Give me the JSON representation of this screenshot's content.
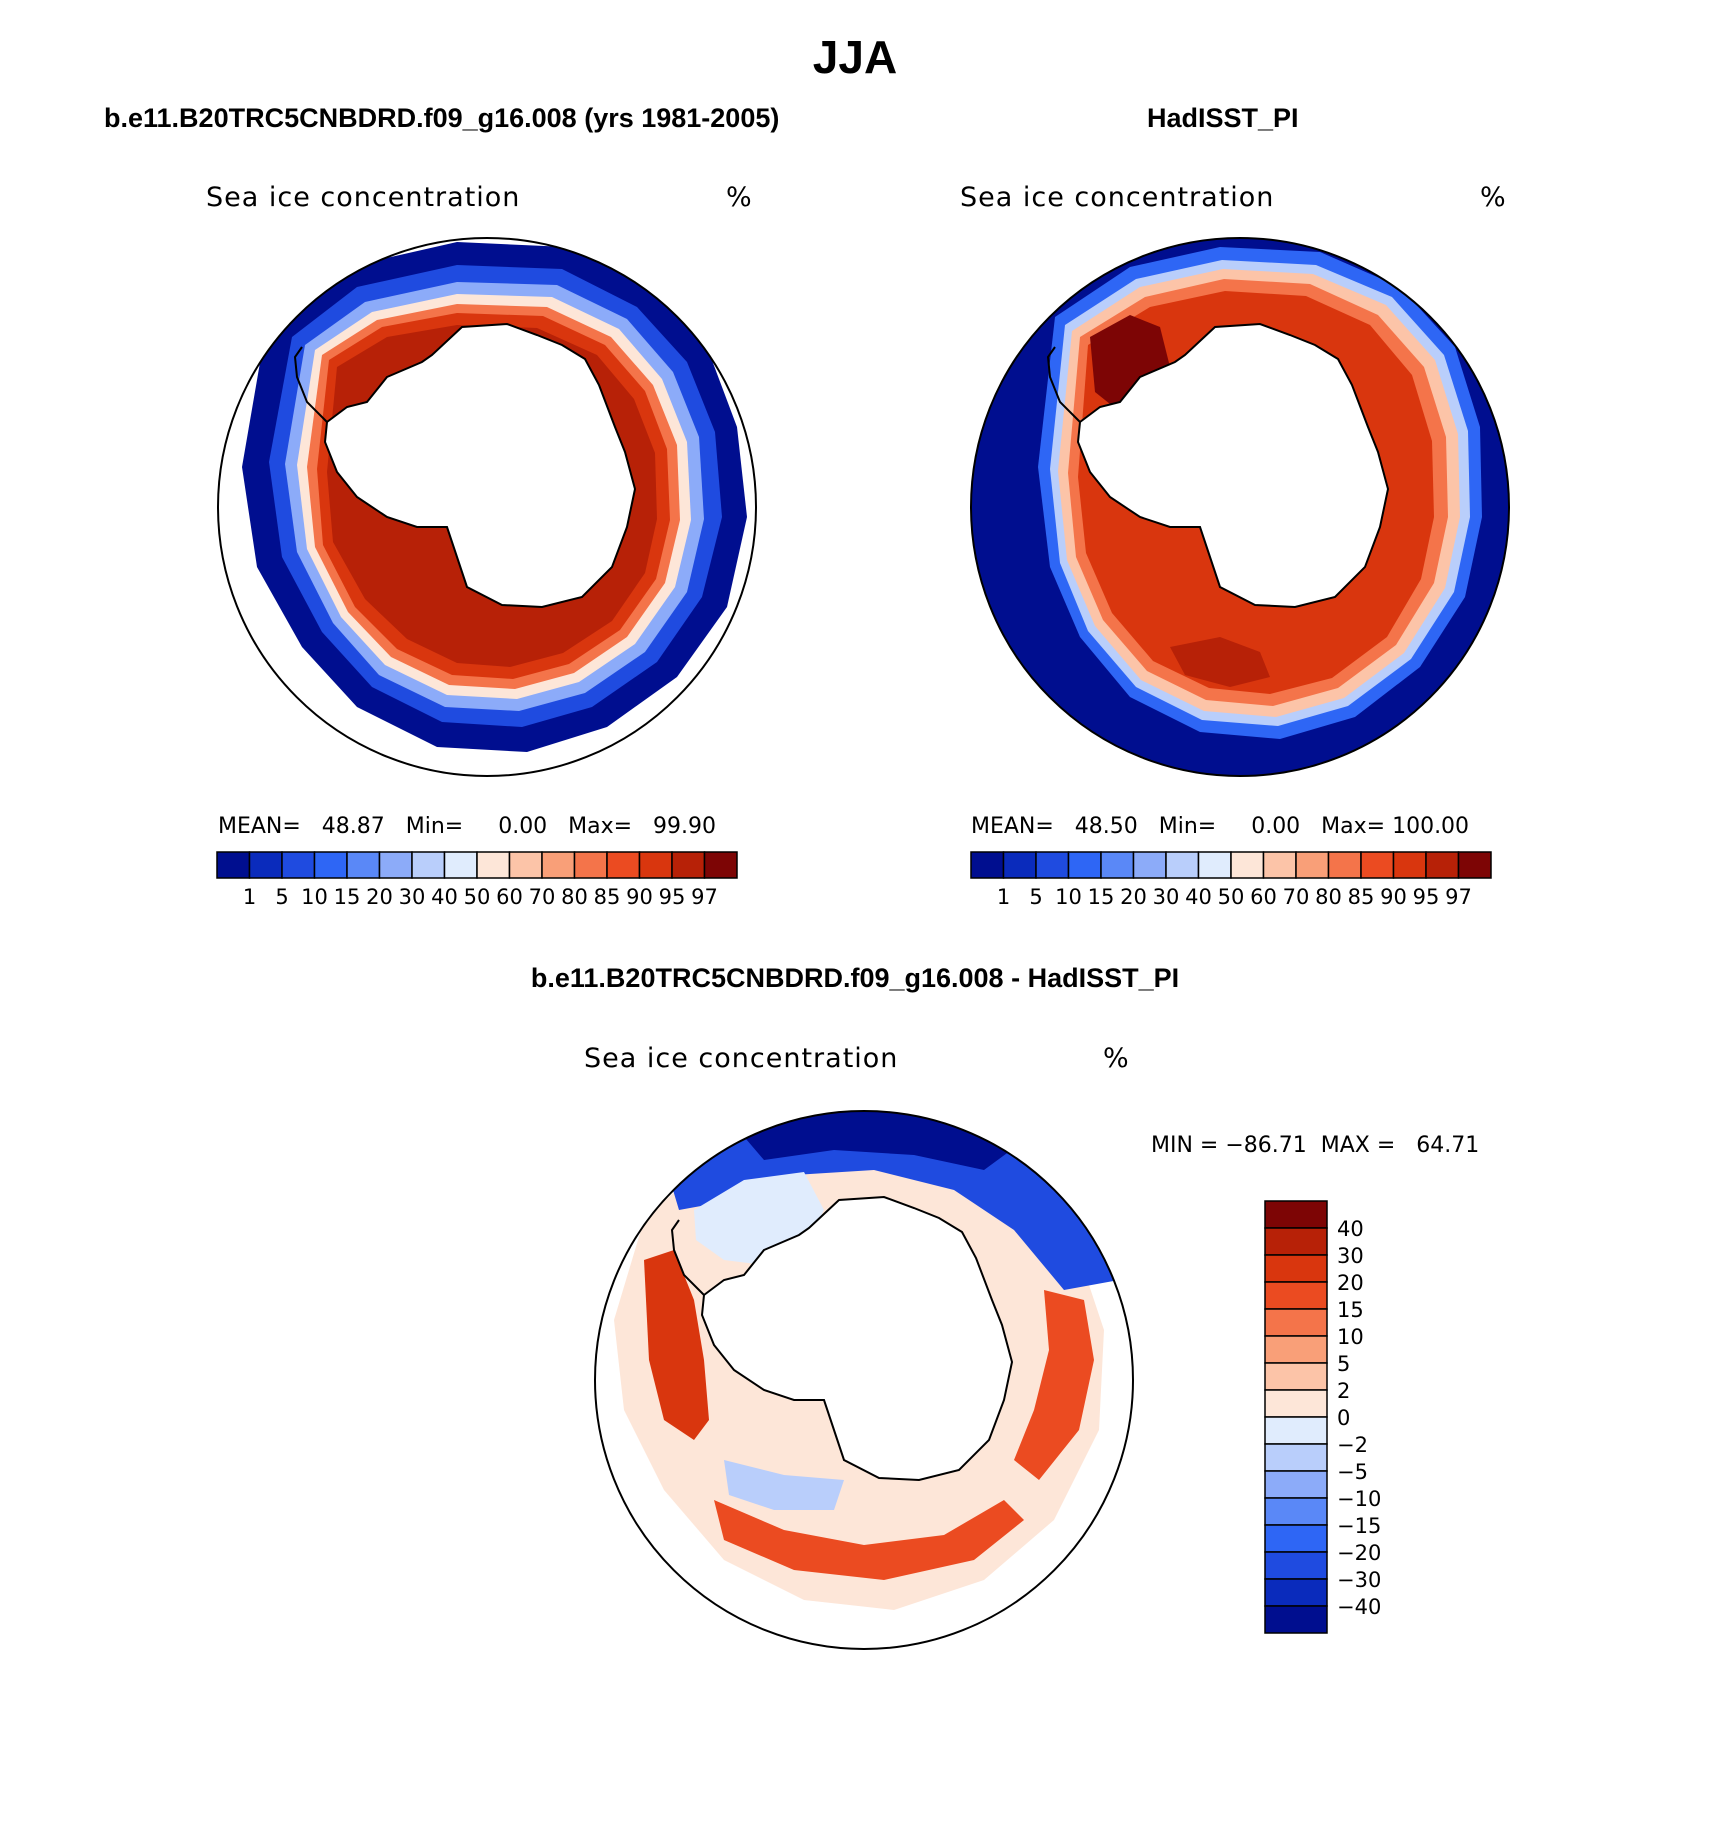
{
  "figure": {
    "title": "JJA",
    "panel_left_title": "b.e11.B20TRC5CNBDRD.f09_g16.008 (yrs 1981-2005)",
    "panel_right_title": "HadISST_PI",
    "panel_diff_title": "b.e11.B20TRC5CNBDRD.f09_g16.008 - HadISST_PI"
  },
  "panels": {
    "left": {
      "field_name": "Sea ice concentration",
      "units": "%",
      "stats_text": "MEAN=   48.87   Min=     0.00   Max=   99.90"
    },
    "right": {
      "field_name": "Sea ice concentration",
      "units": "%",
      "stats_text": "MEAN=   48.50   Min=     0.00   Max= 100.00"
    },
    "diff": {
      "field_name": "Sea ice concentration",
      "units": "%",
      "stats_text": "MIN = −86.71  MAX =   64.71"
    }
  },
  "chart_data": [
    {
      "type": "heatmap",
      "title": "b.e11.B20TRC5CNBDRD.f09_g16.008 (yrs 1981-2005)",
      "projection": "south-polar-stereographic",
      "variable": "Sea ice concentration",
      "units": "%",
      "mean": 48.87,
      "min": 0.0,
      "max": 99.9,
      "colorbar_levels": [
        "1",
        "5",
        "10",
        "15",
        "20",
        "30",
        "40",
        "50",
        "60",
        "70",
        "80",
        "85",
        "90",
        "95",
        "97"
      ],
      "colorbar_colors": [
        "#000e8f",
        "#0a2bbc",
        "#1f4be0",
        "#2e66f5",
        "#5a88f7",
        "#8cabf9",
        "#b9cefb",
        "#e0ecfd",
        "#fde6d8",
        "#fcc4a8",
        "#f99f78",
        "#f4744a",
        "#eb4b21",
        "#d9360e",
        "#b72107",
        "#7d0505"
      ]
    },
    {
      "type": "heatmap",
      "title": "HadISST_PI",
      "projection": "south-polar-stereographic",
      "variable": "Sea ice concentration",
      "units": "%",
      "mean": 48.5,
      "min": 0.0,
      "max": 100.0,
      "colorbar_levels": [
        "1",
        "5",
        "10",
        "15",
        "20",
        "30",
        "40",
        "50",
        "60",
        "70",
        "80",
        "85",
        "90",
        "95",
        "97"
      ],
      "colorbar_colors": [
        "#000e8f",
        "#0a2bbc",
        "#1f4be0",
        "#2e66f5",
        "#5a88f7",
        "#8cabf9",
        "#b9cefb",
        "#e0ecfd",
        "#fde6d8",
        "#fcc4a8",
        "#f99f78",
        "#f4744a",
        "#eb4b21",
        "#d9360e",
        "#b72107",
        "#7d0505"
      ]
    },
    {
      "type": "heatmap",
      "title": "b.e11.B20TRC5CNBDRD.f09_g16.008 - HadISST_PI",
      "projection": "south-polar-stereographic",
      "variable": "Sea ice concentration",
      "units": "%",
      "min": -86.71,
      "max": 64.71,
      "colorbar_levels": [
        "40",
        "30",
        "20",
        "15",
        "10",
        "5",
        "2",
        "0",
        "−2",
        "−5",
        "−10",
        "−15",
        "−20",
        "−30",
        "−40"
      ],
      "colorbar_colors": [
        "#7d0505",
        "#b72107",
        "#d9360e",
        "#eb4b21",
        "#f4744a",
        "#f99f78",
        "#fcc4a8",
        "#fde6d8",
        "#e0ecfd",
        "#b9cefb",
        "#8cabf9",
        "#5a88f7",
        "#2e66f5",
        "#1f4be0",
        "#0a2bbc",
        "#000e8f"
      ]
    }
  ]
}
